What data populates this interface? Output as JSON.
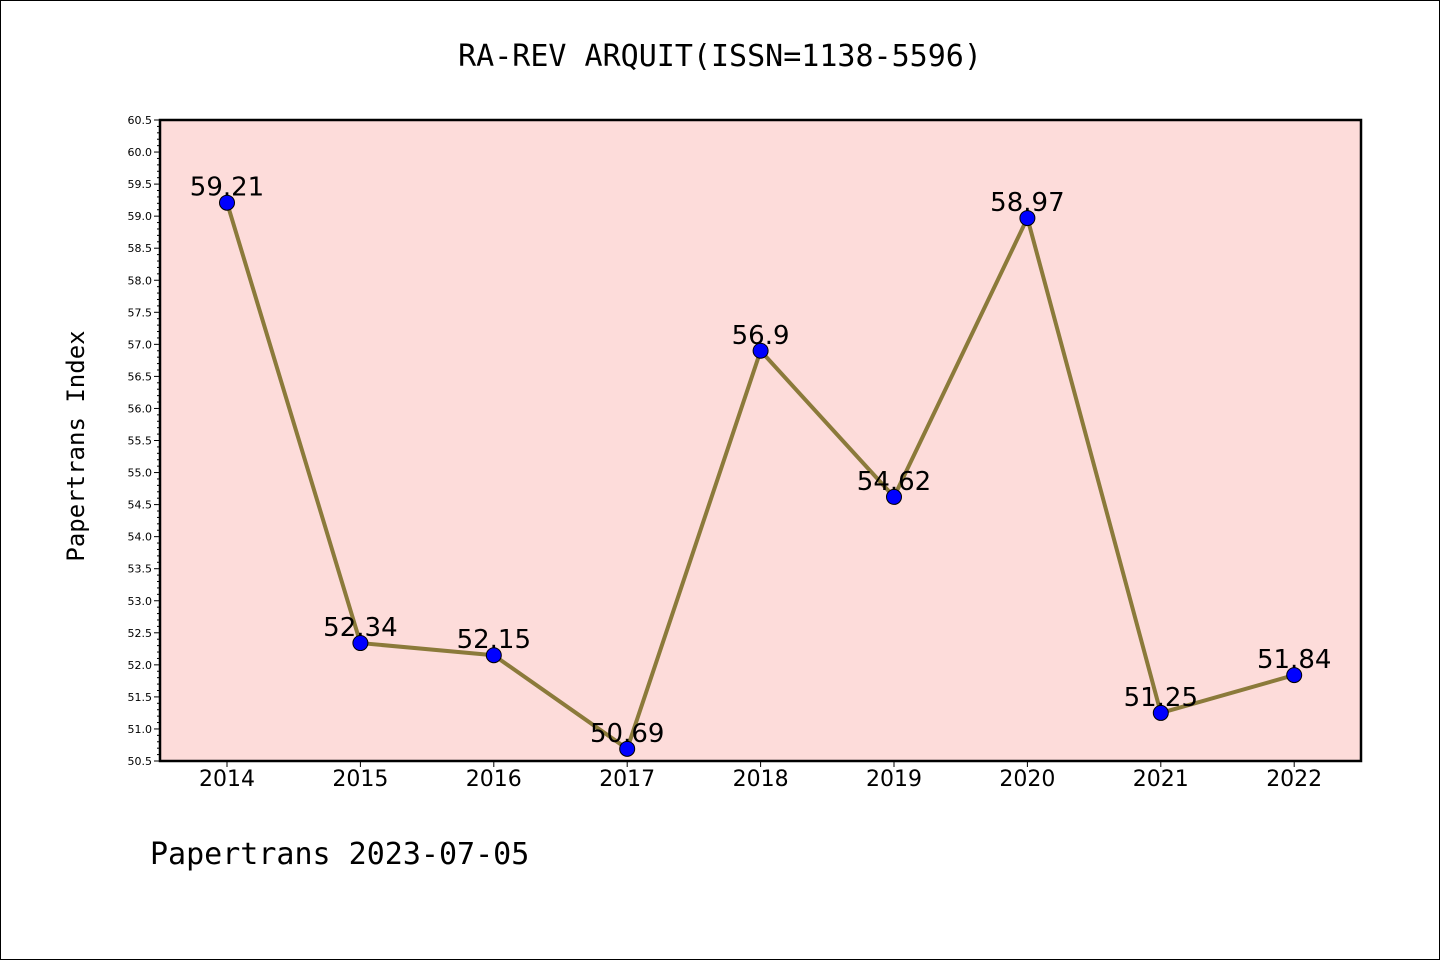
{
  "chart_data": {
    "type": "line",
    "title": "RA-REV ARQUIT(ISSN=1138-5596)",
    "ylabel": "Papertrans Index",
    "xlabel": "",
    "categories": [
      "2014",
      "2015",
      "2016",
      "2017",
      "2018",
      "2019",
      "2020",
      "2021",
      "2022"
    ],
    "series": [
      {
        "values": [
          59.21,
          52.34,
          52.15,
          50.69,
          56.9,
          54.62,
          58.97,
          51.25,
          51.84
        ]
      }
    ],
    "data_labels": [
      "59.21",
      "52.34",
      "52.15",
      "50.69",
      "56.9",
      "54.62",
      "58.97",
      "51.25",
      "51.84"
    ],
    "ylim": [
      50.5,
      60.5
    ],
    "yticks": [
      "50.5",
      "51.0",
      "51.5",
      "52.0",
      "52.5",
      "53.0",
      "53.5",
      "54.0",
      "54.5",
      "55.0",
      "55.5",
      "56.0",
      "56.5",
      "57.0",
      "57.5",
      "58.0",
      "58.5",
      "59.0",
      "59.5",
      "60.0",
      "60.5"
    ],
    "grid": false,
    "legend": "none",
    "colors": {
      "plot_background": "#fddcda",
      "line": "#8b7a3a",
      "marker": "#0000ff"
    }
  },
  "footer": "Papertrans 2023-07-05"
}
